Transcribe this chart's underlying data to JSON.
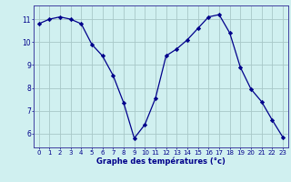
{
  "x": [
    0,
    1,
    2,
    3,
    4,
    5,
    6,
    7,
    8,
    9,
    10,
    11,
    12,
    13,
    14,
    15,
    16,
    17,
    18,
    19,
    20,
    21,
    22,
    23
  ],
  "y": [
    10.8,
    11.0,
    11.1,
    11.0,
    10.8,
    9.9,
    9.4,
    8.55,
    7.35,
    5.8,
    6.4,
    7.55,
    9.4,
    9.7,
    10.1,
    10.6,
    11.1,
    11.2,
    10.4,
    8.9,
    7.95,
    7.4,
    6.6,
    5.85
  ],
  "xlim": [
    -0.5,
    23.5
  ],
  "ylim": [
    5.4,
    11.6
  ],
  "yticks": [
    6,
    7,
    8,
    9,
    10,
    11
  ],
  "xticks": [
    0,
    1,
    2,
    3,
    4,
    5,
    6,
    7,
    8,
    9,
    10,
    11,
    12,
    13,
    14,
    15,
    16,
    17,
    18,
    19,
    20,
    21,
    22,
    23
  ],
  "xlabel": "Graphe des températures (°c)",
  "line_color": "#00008b",
  "marker": "D",
  "marker_size": 2.2,
  "bg_color": "#d0f0f0",
  "grid_color": "#a8c8c8",
  "axis_label_color": "#00008b",
  "tick_color": "#00008b",
  "spine_color": "#4040a0",
  "tick_fontsize": 5.0,
  "xlabel_fontsize": 6.0,
  "ytick_fontsize": 5.5
}
